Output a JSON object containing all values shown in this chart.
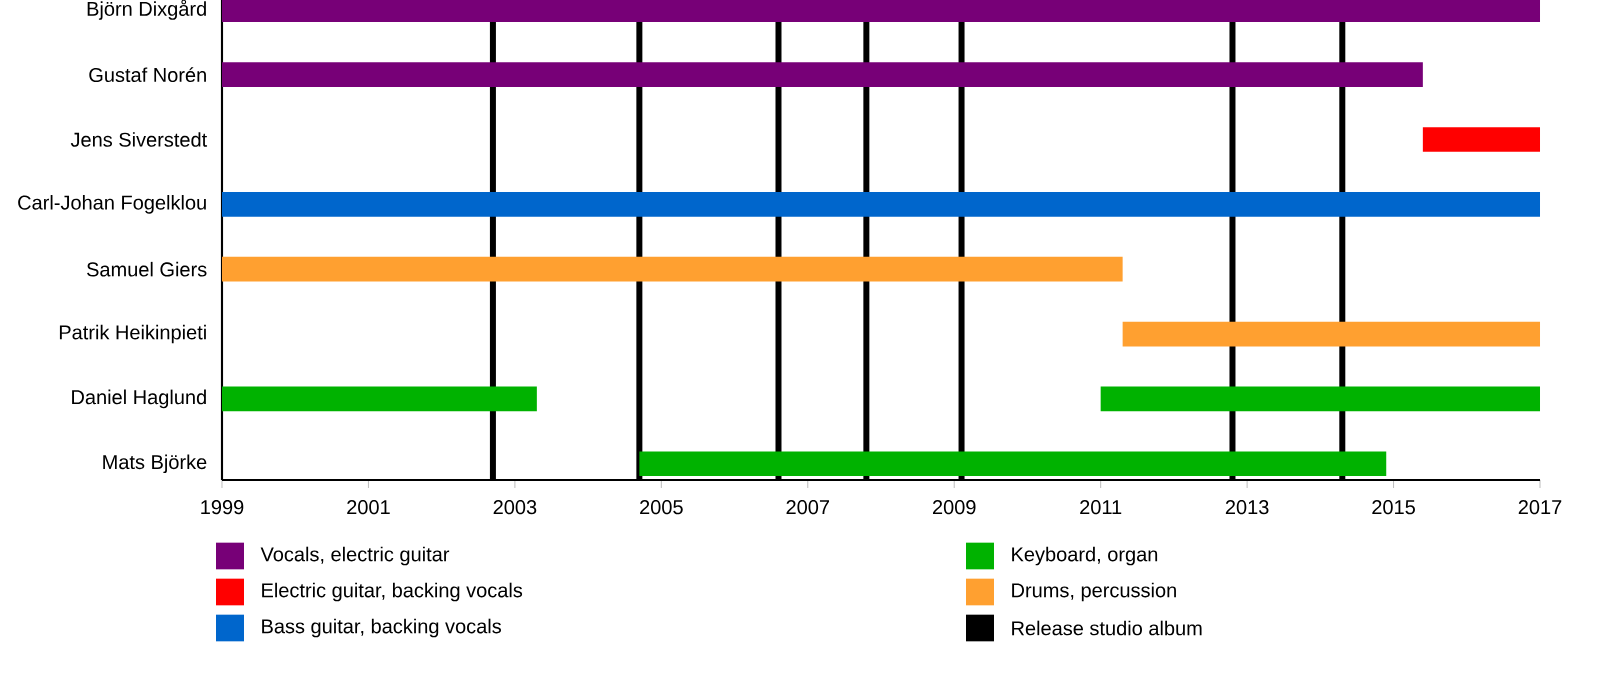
{
  "chart_data": {
    "type": "bar",
    "orientation": "horizontal",
    "legend": "bottom",
    "categories": [
      "Björn Dixgård",
      "Gustaf Norén",
      "Jens Siverstedt",
      "Carl-Johan Fogelklou",
      "Samuel Giers",
      "Patrik Heikinpieti",
      "Daniel Haglund",
      "Mats Björke"
    ],
    "series": [
      {
        "name": "Vocals, electric guitar",
        "color": "#770077",
        "values": [
          18,
          16.4,
          null,
          null,
          null,
          null,
          null,
          null
        ],
        "base": [
          1999,
          1999,
          null,
          null,
          null,
          null,
          null,
          null
        ]
      },
      {
        "name": "Electric guitar, backing vocals",
        "color": "#ff0000",
        "values": [
          null,
          null,
          1.6,
          null,
          null,
          null,
          null,
          null
        ],
        "base": [
          null,
          null,
          2015.4,
          null,
          null,
          null,
          null,
          null
        ]
      },
      {
        "name": "Bass guitar, backing vocals",
        "color": "#0066cc",
        "values": [
          null,
          null,
          null,
          18,
          null,
          null,
          null,
          null
        ],
        "base": [
          null,
          null,
          null,
          1999,
          null,
          null,
          null,
          null
        ]
      },
      {
        "name": "Keyboard, organ",
        "color": "#00b200",
        "values": [
          null,
          null,
          null,
          null,
          null,
          null,
          4.3,
          10.2
        ],
        "base": [
          null,
          null,
          null,
          null,
          null,
          null,
          1999,
          2004.7
        ]
      },
      {
        "color": "#00b200",
        "values": [
          null,
          null,
          null,
          null,
          null,
          null,
          6.0,
          null
        ],
        "base": [
          null,
          null,
          null,
          null,
          null,
          null,
          2011.0,
          null
        ]
      },
      {
        "name": "Drums, percussion",
        "color": "#ffa030",
        "values": [
          null,
          null,
          null,
          null,
          12.3,
          5.7,
          null,
          null
        ],
        "base": [
          null,
          null,
          null,
          null,
          1999,
          2011.3,
          null,
          null
        ]
      }
    ],
    "ref_lines": [
      {
        "axis": "x",
        "value": 2002.7,
        "label": "Release studio album",
        "color": "#000000"
      },
      {
        "axis": "x",
        "value": 2004.7,
        "color": "#000000"
      },
      {
        "axis": "x",
        "value": 2006.6,
        "color": "#000000"
      },
      {
        "axis": "x",
        "value": 2007.8,
        "color": "#000000"
      },
      {
        "axis": "x",
        "value": 2009.1,
        "color": "#000000"
      },
      {
        "axis": "x",
        "value": 2012.8,
        "color": "#000000"
      },
      {
        "axis": "x",
        "value": 2014.3,
        "color": "#000000"
      }
    ],
    "xlim": [
      1999,
      2017
    ],
    "xticks": [
      1999,
      2001,
      2003,
      2005,
      2007,
      2009,
      2011,
      2013,
      2015,
      2017
    ]
  }
}
